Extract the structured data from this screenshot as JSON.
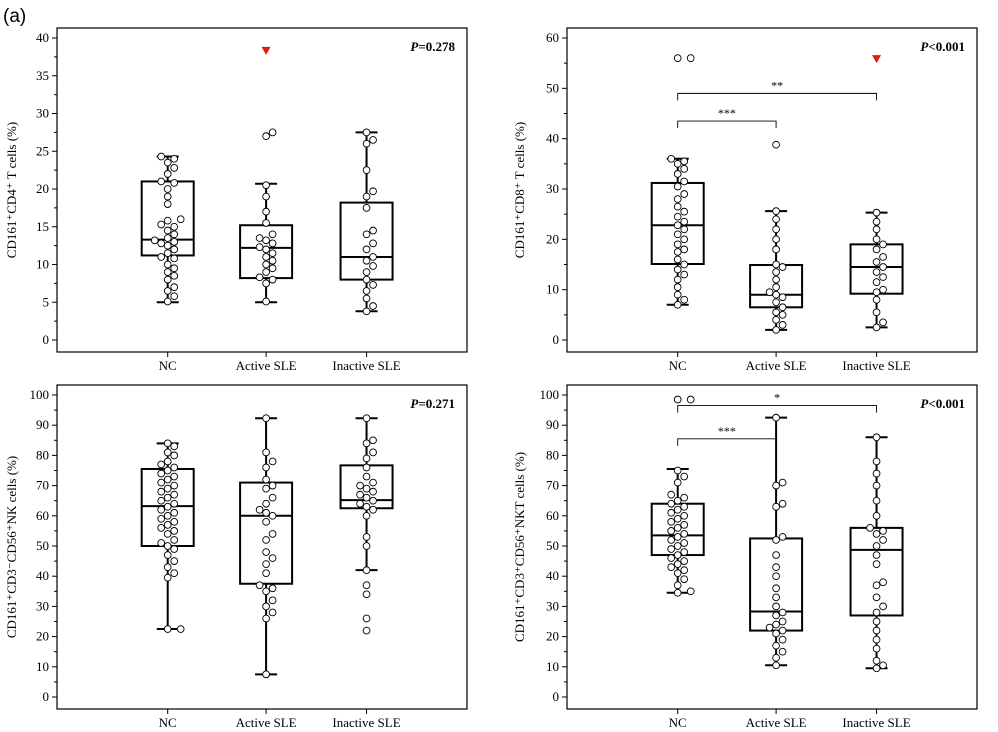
{
  "figure": {
    "panel_label": "(a)"
  },
  "chart_data": [
    {
      "type": "box",
      "ylabel": "CD161⁺CD4⁺ T cells (%)",
      "ylim": [
        0,
        40
      ],
      "yticks": [
        0,
        5,
        10,
        15,
        20,
        25,
        30,
        35,
        40
      ],
      "categories": [
        "NC",
        "Active SLE",
        "Inactive SLE"
      ],
      "p_value": {
        "prefix": "P",
        "text": "=0.278"
      },
      "boxes": [
        {
          "min": 5,
          "q1": 11.2,
          "median": 13.3,
          "q3": 21,
          "max": 24.3,
          "points": [
            5.1,
            5.8,
            6.5,
            7,
            8,
            8.5,
            9,
            9.5,
            10,
            10.8,
            11,
            11.5,
            12,
            12.5,
            12.8,
            13,
            13.2,
            13.5,
            14,
            14.5,
            15,
            15.3,
            15.8,
            16,
            18,
            19,
            20,
            20.8,
            21,
            22,
            22.8,
            23.5,
            24,
            24.3
          ]
        },
        {
          "min": 5,
          "q1": 8.2,
          "median": 12.2,
          "q3": 15.2,
          "max": 20.7,
          "points": [
            5.1,
            7.5,
            8,
            8.3,
            9,
            9.5,
            10,
            10.5,
            11,
            11.5,
            12,
            12.3,
            12.8,
            13.2,
            13.5,
            14,
            15.5,
            17,
            19,
            20.5,
            27,
            27.5
          ]
        },
        {
          "min": 3.8,
          "q1": 8,
          "median": 11,
          "q3": 18.2,
          "max": 27.5,
          "points": [
            3.8,
            4.5,
            5.5,
            6.5,
            7.3,
            8,
            9,
            9.8,
            10.5,
            11,
            12,
            12.8,
            14,
            14.5,
            17.5,
            19,
            19.7,
            22.5,
            26,
            26.5,
            27.5
          ]
        }
      ],
      "red_markers": [
        {
          "category": "Active SLE",
          "y": 38.3
        }
      ],
      "significance": []
    },
    {
      "type": "box",
      "ylabel": "CD161⁺CD8⁺ T cells (%)",
      "ylim": [
        0,
        60
      ],
      "yticks": [
        0,
        10,
        20,
        30,
        40,
        50,
        60
      ],
      "categories": [
        "NC",
        "Active SLE",
        "Inactive SLE"
      ],
      "p_value": {
        "prefix": "P",
        "text": "<0.001"
      },
      "boxes": [
        {
          "min": 7,
          "q1": 15.1,
          "median": 22.8,
          "q3": 31.2,
          "max": 36,
          "points": [
            7,
            8,
            9,
            10.5,
            12,
            13,
            14,
            15,
            16,
            17.5,
            18,
            19,
            20,
            21,
            22,
            22.8,
            23.5,
            24.5,
            25.5,
            26.5,
            28,
            29,
            30.5,
            31.5,
            33,
            34,
            35,
            35.5,
            36,
            56,
            56
          ]
        },
        {
          "min": 2,
          "q1": 6.5,
          "median": 9,
          "q3": 14.9,
          "max": 25.6,
          "points": [
            2,
            3,
            4,
            5,
            5.5,
            6.5,
            7.5,
            8.5,
            9,
            9.5,
            10.5,
            12,
            13.5,
            14.5,
            15,
            18,
            20,
            22,
            24,
            25.6,
            38.8
          ]
        },
        {
          "min": 2.5,
          "q1": 9.2,
          "median": 14.5,
          "q3": 19,
          "max": 25.3,
          "points": [
            2.5,
            3.5,
            5.5,
            8,
            9.5,
            10,
            11.5,
            12.5,
            13.5,
            14.5,
            15.5,
            16.5,
            18,
            19,
            20,
            22,
            23.5,
            25.3
          ]
        }
      ],
      "red_markers": [
        {
          "category": "Inactive SLE",
          "y": 55.8
        }
      ],
      "significance": [
        {
          "from": "NC",
          "to": "Active SLE",
          "y": 43.5,
          "label": "***"
        },
        {
          "from": "NC",
          "to": "Inactive SLE",
          "y": 49,
          "label": "**"
        }
      ]
    },
    {
      "type": "box",
      "ylabel": "CD161⁺CD3⁻CD56⁺NK cells (%)",
      "ylim": [
        0,
        100
      ],
      "yticks": [
        0,
        10,
        20,
        30,
        40,
        50,
        60,
        70,
        80,
        90,
        100
      ],
      "categories": [
        "NC",
        "Active SLE",
        "Inactive SLE"
      ],
      "p_value": {
        "prefix": "P",
        "text": "=0.271"
      },
      "boxes": [
        {
          "min": 22.5,
          "q1": 50,
          "median": 63.2,
          "q3": 75.5,
          "max": 84,
          "points": [
            22.5,
            22.5,
            39.5,
            41,
            43,
            45,
            47,
            49,
            50,
            51,
            52,
            54,
            55,
            56,
            57,
            58,
            59,
            60,
            61,
            62,
            63,
            64,
            65,
            66,
            67,
            68,
            69,
            70,
            71,
            72,
            73,
            74,
            75,
            76,
            77,
            78,
            80,
            81,
            83,
            84
          ]
        },
        {
          "min": 7.5,
          "q1": 37.5,
          "median": 60,
          "q3": 71,
          "max": 92.3,
          "points": [
            7.5,
            26,
            28,
            30,
            32,
            35,
            36,
            37,
            41,
            44,
            46,
            48,
            52,
            54,
            58,
            60,
            61,
            62,
            64,
            66,
            69,
            70,
            72,
            76,
            78,
            81,
            92.3
          ]
        },
        {
          "min": 42,
          "q1": 62.5,
          "median": 65.2,
          "q3": 76.7,
          "max": 92.3,
          "points": [
            22,
            26,
            34,
            37,
            42,
            50,
            53,
            60,
            62,
            63,
            64,
            65,
            66,
            67,
            68,
            69,
            70,
            71,
            73,
            76,
            79,
            81,
            84,
            85,
            92.3
          ]
        }
      ],
      "red_markers": [],
      "significance": []
    },
    {
      "type": "box",
      "ylabel": "CD161⁺CD3⁺CD56⁺NKT cells (%)",
      "ylim": [
        0,
        100
      ],
      "yticks": [
        0,
        10,
        20,
        30,
        40,
        50,
        60,
        70,
        80,
        90,
        100
      ],
      "categories": [
        "NC",
        "Active SLE",
        "Inactive SLE"
      ],
      "p_value": {
        "prefix": "P",
        "text": "<0.001"
      },
      "boxes": [
        {
          "min": 34.5,
          "q1": 47,
          "median": 53.5,
          "q3": 64,
          "max": 75.5,
          "points": [
            34.5,
            35,
            37,
            39,
            41,
            42,
            43,
            44,
            45,
            46,
            47,
            48,
            49,
            50,
            51,
            52,
            53,
            54,
            55,
            56,
            57,
            58,
            59,
            60,
            61,
            62,
            63,
            64,
            65,
            66,
            67,
            71,
            73,
            75,
            98.5,
            98.5
          ]
        },
        {
          "min": 10.5,
          "q1": 22,
          "median": 28.3,
          "q3": 52.5,
          "max": 92.5,
          "points": [
            10.5,
            13,
            15,
            17,
            19,
            21,
            22,
            23,
            24,
            25,
            27,
            28,
            30,
            33,
            36,
            40,
            43,
            47,
            52,
            53,
            63,
            64,
            70,
            71,
            92.5
          ]
        },
        {
          "min": 9.5,
          "q1": 27,
          "median": 48.7,
          "q3": 56,
          "max": 86,
          "points": [
            9.5,
            10.5,
            12,
            16,
            19,
            22,
            25,
            28,
            30,
            33,
            37,
            38,
            44,
            47,
            50,
            52,
            54,
            55,
            56,
            60,
            65,
            70,
            74,
            78,
            86
          ]
        }
      ],
      "red_markers": [],
      "significance": [
        {
          "from": "NC",
          "to": "Active SLE",
          "y": 85.5,
          "label": "***"
        },
        {
          "from": "NC",
          "to": "Inactive SLE",
          "y": 96.5,
          "label": "*"
        }
      ]
    }
  ]
}
